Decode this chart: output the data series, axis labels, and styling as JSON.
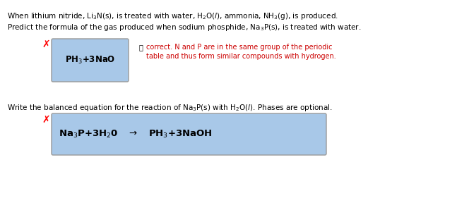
{
  "bg_color": "#ffffff",
  "line1": "When lithium nitride, Li$_{3}$N(s), is treated with water, H$_{2}$O($\\it{l}$), ammonia, NH$_{3}$(g), is produced.",
  "line2": "Predict the formula of the gas produced when sodium phosphide, Na$_{3}$P(s), is treated with water.",
  "box1_color": "#a8c8e8",
  "box1_text": "PH$_{3}$+3NaO",
  "correct_line1": "correct. N and P are in the same group of the periodic",
  "correct_line2": "table and thus form similar compounds with hydrogen.",
  "correct_color": "#cc0000",
  "line3": "Write the balanced equation for the reaction of Na$_{3}$P(s) with H$_{2}$O($\\it{l}$). Phases are optional.",
  "box2_color": "#a8c8e8",
  "box2_text": "Na$_{3}$P+3H$_{2}$0   $\\rightarrow$   PH$_{3}$+3NaOH",
  "font_size_main": 7.5,
  "font_size_box1": 8.5,
  "font_size_box2": 9.5,
  "font_size_correct": 7.0
}
